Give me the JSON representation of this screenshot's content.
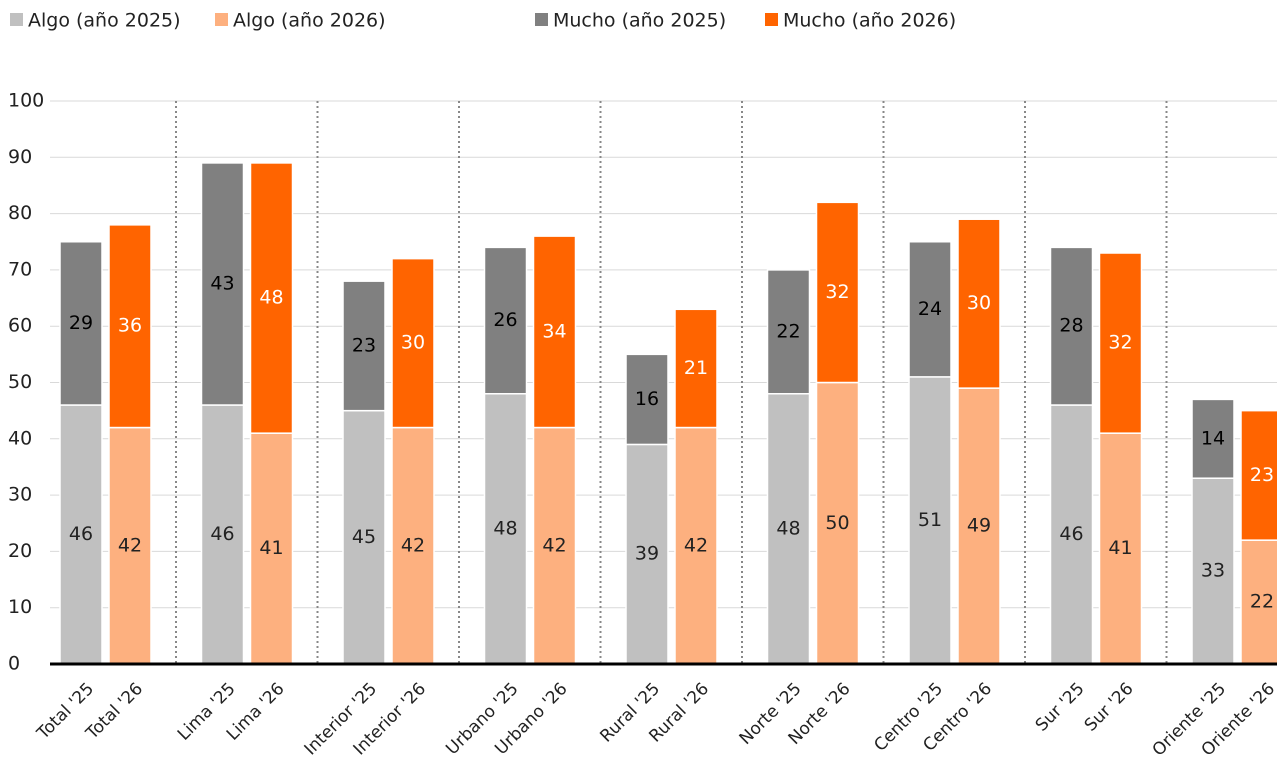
{
  "chart_data": {
    "type": "stacked_bar",
    "categories": [
      "Total '25",
      "Total '26",
      "Lima '25",
      "Lima '26",
      "Interior '25",
      "Interior '26",
      "Urbano '25",
      "Urbano '26",
      "Rural '25",
      "Rural '26",
      "Norte '25",
      "Norte '26",
      "Centro '25",
      "Centro '26",
      "Sur '25",
      "Sur '26",
      "Oriente '25",
      "Oriente '26"
    ],
    "series": [
      {
        "name": "Algo (año 2025)",
        "color": "#c0c0c0",
        "label_color": "#222222",
        "values": [
          46,
          null,
          46,
          null,
          45,
          null,
          48,
          null,
          39,
          null,
          48,
          null,
          51,
          null,
          46,
          null,
          33,
          null
        ]
      },
      {
        "name": "Algo (año 2026)",
        "color": "#fdb07f",
        "label_color": "#222222",
        "values": [
          null,
          42,
          null,
          41,
          null,
          42,
          null,
          42,
          null,
          42,
          null,
          50,
          null,
          49,
          null,
          41,
          null,
          22
        ]
      },
      {
        "name": "Mucho (año 2025)",
        "color": "#808080",
        "label_color": "#000000",
        "values": [
          29,
          null,
          43,
          null,
          23,
          null,
          26,
          null,
          16,
          null,
          22,
          null,
          24,
          null,
          28,
          null,
          14,
          null
        ]
      },
      {
        "name": "Mucho (año 2026)",
        "color": "#ff6400",
        "label_color": "#ffffff",
        "values": [
          null,
          36,
          null,
          48,
          null,
          30,
          null,
          34,
          null,
          21,
          null,
          32,
          null,
          30,
          null,
          32,
          null,
          23
        ]
      }
    ],
    "ylim": [
      0,
      100
    ],
    "yticks": [
      0,
      10,
      20,
      30,
      40,
      50,
      60,
      70,
      80,
      90,
      100
    ],
    "grid": true,
    "legend": "top"
  }
}
